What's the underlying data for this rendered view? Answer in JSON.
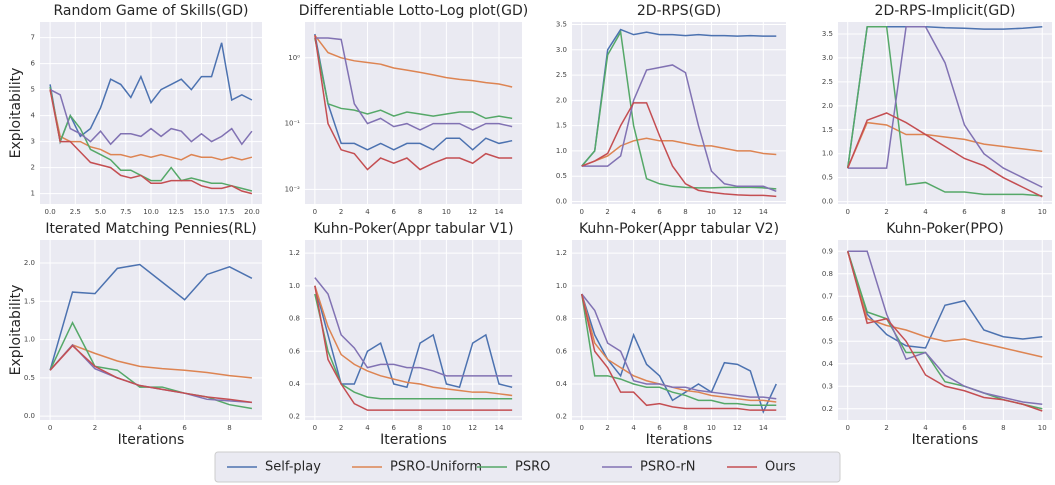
{
  "legend": [
    {
      "name": "Self-play",
      "color": "#4c72b0"
    },
    {
      "name": "PSRO-Uniform",
      "color": "#dd8452"
    },
    {
      "name": "PSRO",
      "color": "#55a868"
    },
    {
      "name": "PSRO-rN",
      "color": "#8172b3"
    },
    {
      "name": "Ours",
      "color": "#c44e52"
    }
  ],
  "chart_data": [
    {
      "type": "line",
      "title": "Random Game of Skills(GD)",
      "ylabel": "Exploitability",
      "x": [
        0,
        1,
        2,
        3,
        4,
        5,
        6,
        7,
        8,
        9,
        10,
        11,
        12,
        13,
        14,
        15,
        16,
        17,
        18,
        19,
        20
      ],
      "xlim": [
        -1,
        21
      ],
      "xticks": [
        {
          "value": 0,
          "label": "0.0"
        },
        2.5,
        {
          "value": 5,
          "label": "5.0"
        },
        7.5,
        {
          "value": 10,
          "label": "10.0"
        },
        12.5,
        {
          "value": 15,
          "label": "15.0"
        },
        17.5,
        {
          "value": 20,
          "label": "20.0"
        }
      ],
      "ylim": [
        0.6,
        7.6
      ],
      "yticks": [
        1,
        2,
        3,
        4,
        5,
        6,
        7
      ],
      "grid": true,
      "series": [
        {
          "values": [
            5.2,
            3.0,
            4.0,
            3.2,
            3.5,
            4.3,
            5.4,
            5.2,
            4.7,
            5.5,
            4.5,
            5.0,
            5.2,
            5.4,
            5.0,
            5.5,
            5.5,
            6.8,
            4.6,
            4.8,
            4.6
          ]
        },
        {
          "values": [
            5.0,
            3.2,
            3.0,
            3.0,
            2.8,
            2.7,
            2.5,
            2.5,
            2.4,
            2.5,
            2.4,
            2.5,
            2.4,
            2.3,
            2.5,
            2.4,
            2.4,
            2.3,
            2.4,
            2.3,
            2.4
          ]
        },
        {
          "values": [
            5.1,
            3.0,
            4.0,
            3.5,
            2.7,
            2.5,
            2.3,
            1.9,
            1.9,
            1.7,
            1.5,
            1.5,
            2.0,
            1.5,
            1.6,
            1.5,
            1.4,
            1.4,
            1.3,
            1.2,
            1.1
          ]
        },
        {
          "values": [
            5.0,
            4.8,
            3.5,
            3.3,
            3.0,
            3.4,
            2.9,
            3.3,
            3.3,
            3.2,
            3.5,
            3.2,
            3.5,
            3.4,
            3.0,
            3.3,
            3.0,
            3.2,
            3.5,
            2.9,
            3.4
          ]
        },
        {
          "values": [
            5.0,
            3.0,
            3.0,
            2.6,
            2.2,
            2.1,
            2.0,
            1.7,
            1.6,
            1.7,
            1.4,
            1.4,
            1.5,
            1.5,
            1.5,
            1.3,
            1.2,
            1.2,
            1.3,
            1.1,
            1.0
          ]
        }
      ]
    },
    {
      "type": "line",
      "title": "Differentiable Lotto-Log plot(GD)",
      "x": [
        0,
        1,
        2,
        3,
        4,
        5,
        6,
        7,
        8,
        9,
        10,
        11,
        12,
        13,
        14,
        15
      ],
      "xlim": [
        -0.75,
        15.75
      ],
      "xticks": [
        0,
        2,
        4,
        6,
        8,
        10,
        12,
        14
      ],
      "log": true,
      "ylim": [
        0.006,
        3.5
      ],
      "yticks": [
        {
          "value": 0.01,
          "label": "10⁻²"
        },
        {
          "value": 0.1,
          "label": "10⁻¹"
        },
        {
          "value": 1,
          "label": "10⁰"
        }
      ],
      "grid": true,
      "series": [
        {
          "values": [
            2.3,
            0.2,
            0.05,
            0.05,
            0.04,
            0.05,
            0.04,
            0.05,
            0.05,
            0.04,
            0.06,
            0.06,
            0.04,
            0.06,
            0.05,
            0.055
          ]
        },
        {
          "values": [
            2.2,
            1.2,
            1.0,
            0.9,
            0.85,
            0.8,
            0.7,
            0.65,
            0.6,
            0.55,
            0.5,
            0.47,
            0.45,
            0.42,
            0.4,
            0.36
          ]
        },
        {
          "values": [
            2.0,
            0.2,
            0.17,
            0.16,
            0.14,
            0.16,
            0.13,
            0.15,
            0.14,
            0.13,
            0.14,
            0.15,
            0.15,
            0.12,
            0.13,
            0.12
          ]
        },
        {
          "values": [
            2.0,
            2.0,
            1.9,
            0.2,
            0.1,
            0.12,
            0.09,
            0.1,
            0.08,
            0.1,
            0.1,
            0.1,
            0.08,
            0.1,
            0.1,
            0.09
          ]
        },
        {
          "values": [
            2.2,
            0.1,
            0.04,
            0.035,
            0.02,
            0.03,
            0.025,
            0.03,
            0.02,
            0.025,
            0.03,
            0.03,
            0.025,
            0.035,
            0.03,
            0.03
          ]
        }
      ]
    },
    {
      "type": "line",
      "title": "2D-RPS(GD)",
      "x": [
        0,
        1,
        2,
        3,
        4,
        5,
        6,
        7,
        8,
        9,
        10,
        11,
        12,
        13,
        14,
        15
      ],
      "xlim": [
        -0.75,
        15.75
      ],
      "xticks": [
        0,
        2,
        4,
        6,
        8,
        10,
        12,
        14
      ],
      "ylim": [
        -0.05,
        3.55
      ],
      "yticks": [
        {
          "value": 0,
          "label": "0.0"
        },
        0.5,
        {
          "value": 1,
          "label": "1.0"
        },
        1.5,
        {
          "value": 2,
          "label": "2.0"
        },
        2.5,
        {
          "value": 3,
          "label": "3.0"
        },
        3.5
      ],
      "grid": true,
      "series": [
        {
          "values": [
            0.7,
            1.0,
            3.0,
            3.4,
            3.3,
            3.35,
            3.3,
            3.3,
            3.28,
            3.3,
            3.28,
            3.28,
            3.27,
            3.28,
            3.27,
            3.27
          ]
        },
        {
          "values": [
            0.7,
            0.8,
            0.9,
            1.1,
            1.2,
            1.25,
            1.2,
            1.2,
            1.15,
            1.1,
            1.1,
            1.05,
            1.0,
            1.0,
            0.95,
            0.93
          ]
        },
        {
          "values": [
            0.7,
            1.0,
            2.9,
            3.35,
            1.5,
            0.45,
            0.35,
            0.3,
            0.28,
            0.27,
            0.27,
            0.28,
            0.28,
            0.28,
            0.27,
            0.25
          ]
        },
        {
          "values": [
            0.7,
            0.7,
            0.7,
            0.9,
            2.0,
            2.6,
            2.65,
            2.7,
            2.55,
            1.5,
            0.6,
            0.35,
            0.3,
            0.3,
            0.3,
            0.2
          ]
        },
        {
          "values": [
            0.7,
            0.8,
            0.95,
            1.5,
            1.95,
            1.95,
            1.3,
            0.7,
            0.35,
            0.22,
            0.18,
            0.15,
            0.13,
            0.12,
            0.12,
            0.1
          ]
        }
      ]
    },
    {
      "type": "line",
      "title": "2D-RPS-Implicit(GD)",
      "x": [
        0,
        1,
        2,
        3,
        4,
        5,
        6,
        7,
        8,
        9,
        10
      ],
      "xlim": [
        -0.5,
        10.5
      ],
      "xticks": [
        0,
        2,
        4,
        6,
        8,
        10
      ],
      "ylim": [
        -0.05,
        3.75
      ],
      "yticks": [
        {
          "value": 0,
          "label": "0.0"
        },
        0.5,
        {
          "value": 1,
          "label": "1.0"
        },
        1.5,
        {
          "value": 2,
          "label": "2.0"
        },
        2.5,
        {
          "value": 3,
          "label": "3.0"
        },
        3.5
      ],
      "grid": true,
      "series": [
        {
          "values": [
            0.7,
            3.65,
            3.65,
            3.65,
            3.65,
            3.63,
            3.62,
            3.6,
            3.6,
            3.62,
            3.65
          ]
        },
        {
          "values": [
            0.7,
            1.65,
            1.6,
            1.4,
            1.4,
            1.35,
            1.3,
            1.2,
            1.15,
            1.1,
            1.05
          ]
        },
        {
          "values": [
            0.7,
            3.65,
            3.65,
            0.35,
            0.4,
            0.2,
            0.2,
            0.15,
            0.15,
            0.15,
            0.12
          ]
        },
        {
          "values": [
            0.7,
            0.7,
            0.7,
            3.65,
            3.65,
            2.9,
            1.6,
            1.0,
            0.7,
            0.5,
            0.3
          ]
        },
        {
          "values": [
            0.7,
            1.7,
            1.85,
            1.65,
            1.4,
            1.15,
            0.9,
            0.75,
            0.5,
            0.3,
            0.1
          ]
        }
      ]
    },
    {
      "type": "line",
      "title": "Iterated Matching Pennies(RL)",
      "ylabel": "Exploitability",
      "xlabel": "Iterations",
      "x": [
        0,
        1,
        2,
        3,
        4,
        5,
        6,
        7,
        8,
        9
      ],
      "xlim": [
        -0.45,
        9.45
      ],
      "xticks": [
        0,
        2,
        4,
        6,
        8
      ],
      "ylim": [
        -0.05,
        2.3
      ],
      "yticks": [
        {
          "value": 0,
          "label": "0.0"
        },
        0.5,
        {
          "value": 1,
          "label": "1.0"
        },
        1.5,
        {
          "value": 2,
          "label": "2.0"
        }
      ],
      "grid": true,
      "series": [
        {
          "values": [
            0.6,
            1.62,
            1.6,
            1.93,
            1.98,
            1.75,
            1.52,
            1.85,
            1.95,
            1.8
          ]
        },
        {
          "values": [
            0.6,
            0.93,
            0.82,
            0.72,
            0.65,
            0.62,
            0.6,
            0.57,
            0.53,
            0.5
          ]
        },
        {
          "values": [
            0.6,
            1.22,
            0.65,
            0.6,
            0.38,
            0.38,
            0.3,
            0.25,
            0.15,
            0.1
          ]
        },
        {
          "values": [
            0.6,
            0.93,
            0.62,
            0.5,
            0.4,
            0.35,
            0.3,
            0.22,
            0.2,
            0.18
          ]
        },
        {
          "values": [
            0.6,
            0.92,
            0.65,
            0.5,
            0.4,
            0.35,
            0.3,
            0.25,
            0.22,
            0.18
          ]
        }
      ]
    },
    {
      "type": "line",
      "title": "Kuhn-Poker(Appr tabular V1)",
      "xlabel": "Iterations",
      "x": [
        0,
        1,
        2,
        3,
        4,
        5,
        6,
        7,
        8,
        9,
        10,
        11,
        12,
        13,
        14,
        15
      ],
      "xlim": [
        -0.75,
        15.75
      ],
      "xticks": [
        0,
        2,
        4,
        6,
        8,
        10,
        12,
        14
      ],
      "ylim": [
        0.18,
        1.28
      ],
      "yticks": [
        0.2,
        0.4,
        0.6,
        0.8,
        {
          "value": 1,
          "label": "1.0"
        },
        1.2
      ],
      "grid": true,
      "series": [
        {
          "values": [
            1.0,
            0.7,
            0.4,
            0.4,
            0.6,
            0.65,
            0.4,
            0.38,
            0.65,
            0.7,
            0.4,
            0.38,
            0.65,
            0.7,
            0.4,
            0.38
          ]
        },
        {
          "values": [
            1.0,
            0.75,
            0.58,
            0.52,
            0.48,
            0.45,
            0.43,
            0.41,
            0.4,
            0.38,
            0.37,
            0.36,
            0.35,
            0.35,
            0.34,
            0.33
          ]
        },
        {
          "values": [
            0.95,
            0.6,
            0.4,
            0.35,
            0.32,
            0.31,
            0.31,
            0.31,
            0.31,
            0.31,
            0.31,
            0.31,
            0.31,
            0.31,
            0.31,
            0.31
          ]
        },
        {
          "values": [
            1.05,
            0.95,
            0.7,
            0.62,
            0.5,
            0.52,
            0.52,
            0.5,
            0.5,
            0.48,
            0.45,
            0.45,
            0.45,
            0.45,
            0.45,
            0.45
          ]
        },
        {
          "values": [
            1.0,
            0.55,
            0.4,
            0.28,
            0.24,
            0.24,
            0.24,
            0.24,
            0.24,
            0.24,
            0.24,
            0.24,
            0.24,
            0.24,
            0.24,
            0.24
          ]
        }
      ]
    },
    {
      "type": "line",
      "title": "Kuhn-Poker(Appr tabular V2)",
      "xlabel": "Iterations",
      "x": [
        0,
        1,
        2,
        3,
        4,
        5,
        6,
        7,
        8,
        9,
        10,
        11,
        12,
        13,
        14,
        15
      ],
      "xlim": [
        -0.75,
        15.75
      ],
      "xticks": [
        0,
        2,
        4,
        6,
        8,
        10,
        12,
        14
      ],
      "ylim": [
        0.18,
        1.28
      ],
      "yticks": [
        0.2,
        0.4,
        0.6,
        0.8,
        {
          "value": 1,
          "label": "1.0"
        },
        1.2
      ],
      "grid": true,
      "series": [
        {
          "values": [
            0.95,
            0.7,
            0.55,
            0.45,
            0.7,
            0.52,
            0.45,
            0.3,
            0.35,
            0.4,
            0.35,
            0.53,
            0.52,
            0.48,
            0.23,
            0.4
          ]
        },
        {
          "values": [
            0.95,
            0.65,
            0.55,
            0.5,
            0.45,
            0.42,
            0.4,
            0.38,
            0.36,
            0.35,
            0.33,
            0.32,
            0.31,
            0.3,
            0.3,
            0.29
          ]
        },
        {
          "values": [
            0.95,
            0.45,
            0.45,
            0.43,
            0.4,
            0.38,
            0.38,
            0.35,
            0.33,
            0.3,
            0.3,
            0.28,
            0.28,
            0.27,
            0.27,
            0.27
          ]
        },
        {
          "values": [
            0.95,
            0.85,
            0.65,
            0.6,
            0.42,
            0.4,
            0.4,
            0.38,
            0.38,
            0.36,
            0.35,
            0.34,
            0.33,
            0.32,
            0.32,
            0.31
          ]
        },
        {
          "values": [
            0.95,
            0.6,
            0.5,
            0.35,
            0.35,
            0.27,
            0.28,
            0.26,
            0.25,
            0.25,
            0.25,
            0.25,
            0.25,
            0.24,
            0.24,
            0.24
          ]
        }
      ]
    },
    {
      "type": "line",
      "title": "Kuhn-Poker(PPO)",
      "xlabel": "Iterations",
      "x": [
        0,
        1,
        2,
        3,
        4,
        5,
        6,
        7,
        8,
        9,
        10
      ],
      "xlim": [
        -0.5,
        10.5
      ],
      "xticks": [
        0,
        2,
        4,
        6,
        8,
        10
      ],
      "ylim": [
        0.15,
        0.95
      ],
      "yticks": [
        0.2,
        0.3,
        0.4,
        0.5,
        0.6,
        0.7,
        0.8,
        0.9
      ],
      "grid": true,
      "series": [
        {
          "values": [
            0.9,
            0.62,
            0.53,
            0.48,
            0.47,
            0.66,
            0.68,
            0.55,
            0.52,
            0.51,
            0.52
          ]
        },
        {
          "values": [
            0.9,
            0.6,
            0.57,
            0.55,
            0.52,
            0.5,
            0.51,
            0.49,
            0.47,
            0.45,
            0.43
          ]
        },
        {
          "values": [
            0.9,
            0.63,
            0.6,
            0.45,
            0.45,
            0.32,
            0.3,
            0.27,
            0.24,
            0.22,
            0.2
          ]
        },
        {
          "values": [
            0.9,
            0.9,
            0.62,
            0.42,
            0.45,
            0.35,
            0.3,
            0.27,
            0.25,
            0.23,
            0.22
          ]
        },
        {
          "values": [
            0.9,
            0.58,
            0.6,
            0.5,
            0.35,
            0.3,
            0.28,
            0.25,
            0.24,
            0.22,
            0.19
          ]
        }
      ]
    }
  ]
}
